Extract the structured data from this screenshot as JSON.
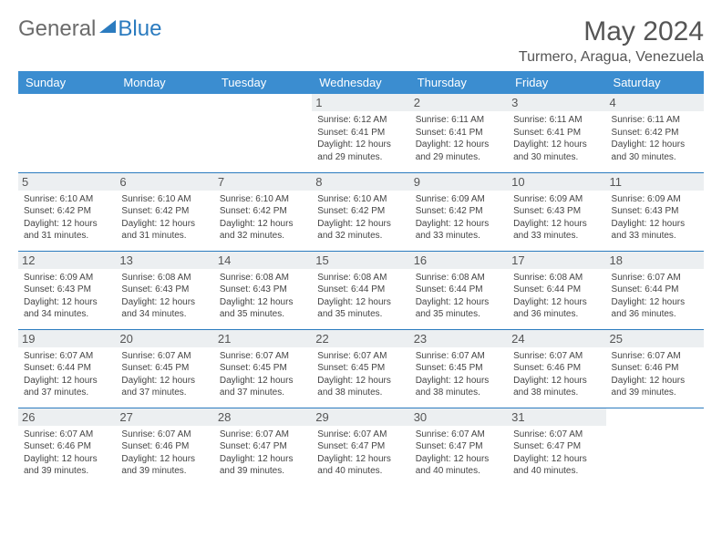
{
  "logo": {
    "general": "General",
    "blue": "Blue"
  },
  "title": "May 2024",
  "location": "Turmero, Aragua, Venezuela",
  "day_headers": [
    "Sunday",
    "Monday",
    "Tuesday",
    "Wednesday",
    "Thursday",
    "Friday",
    "Saturday"
  ],
  "colors": {
    "header_bg": "#3b8dd0",
    "accent": "#2b7bbf",
    "daynum_bg": "#eceff1",
    "text": "#444444"
  },
  "layout": {
    "first_weekday_index": 3,
    "days_in_month": 31,
    "cols": 7,
    "rows": 5
  },
  "days": [
    {
      "n": 1,
      "sunrise": "6:12 AM",
      "sunset": "6:41 PM",
      "daylight": "12 hours and 29 minutes."
    },
    {
      "n": 2,
      "sunrise": "6:11 AM",
      "sunset": "6:41 PM",
      "daylight": "12 hours and 29 minutes."
    },
    {
      "n": 3,
      "sunrise": "6:11 AM",
      "sunset": "6:41 PM",
      "daylight": "12 hours and 30 minutes."
    },
    {
      "n": 4,
      "sunrise": "6:11 AM",
      "sunset": "6:42 PM",
      "daylight": "12 hours and 30 minutes."
    },
    {
      "n": 5,
      "sunrise": "6:10 AM",
      "sunset": "6:42 PM",
      "daylight": "12 hours and 31 minutes."
    },
    {
      "n": 6,
      "sunrise": "6:10 AM",
      "sunset": "6:42 PM",
      "daylight": "12 hours and 31 minutes."
    },
    {
      "n": 7,
      "sunrise": "6:10 AM",
      "sunset": "6:42 PM",
      "daylight": "12 hours and 32 minutes."
    },
    {
      "n": 8,
      "sunrise": "6:10 AM",
      "sunset": "6:42 PM",
      "daylight": "12 hours and 32 minutes."
    },
    {
      "n": 9,
      "sunrise": "6:09 AM",
      "sunset": "6:42 PM",
      "daylight": "12 hours and 33 minutes."
    },
    {
      "n": 10,
      "sunrise": "6:09 AM",
      "sunset": "6:43 PM",
      "daylight": "12 hours and 33 minutes."
    },
    {
      "n": 11,
      "sunrise": "6:09 AM",
      "sunset": "6:43 PM",
      "daylight": "12 hours and 33 minutes."
    },
    {
      "n": 12,
      "sunrise": "6:09 AM",
      "sunset": "6:43 PM",
      "daylight": "12 hours and 34 minutes."
    },
    {
      "n": 13,
      "sunrise": "6:08 AM",
      "sunset": "6:43 PM",
      "daylight": "12 hours and 34 minutes."
    },
    {
      "n": 14,
      "sunrise": "6:08 AM",
      "sunset": "6:43 PM",
      "daylight": "12 hours and 35 minutes."
    },
    {
      "n": 15,
      "sunrise": "6:08 AM",
      "sunset": "6:44 PM",
      "daylight": "12 hours and 35 minutes."
    },
    {
      "n": 16,
      "sunrise": "6:08 AM",
      "sunset": "6:44 PM",
      "daylight": "12 hours and 35 minutes."
    },
    {
      "n": 17,
      "sunrise": "6:08 AM",
      "sunset": "6:44 PM",
      "daylight": "12 hours and 36 minutes."
    },
    {
      "n": 18,
      "sunrise": "6:07 AM",
      "sunset": "6:44 PM",
      "daylight": "12 hours and 36 minutes."
    },
    {
      "n": 19,
      "sunrise": "6:07 AM",
      "sunset": "6:44 PM",
      "daylight": "12 hours and 37 minutes."
    },
    {
      "n": 20,
      "sunrise": "6:07 AM",
      "sunset": "6:45 PM",
      "daylight": "12 hours and 37 minutes."
    },
    {
      "n": 21,
      "sunrise": "6:07 AM",
      "sunset": "6:45 PM",
      "daylight": "12 hours and 37 minutes."
    },
    {
      "n": 22,
      "sunrise": "6:07 AM",
      "sunset": "6:45 PM",
      "daylight": "12 hours and 38 minutes."
    },
    {
      "n": 23,
      "sunrise": "6:07 AM",
      "sunset": "6:45 PM",
      "daylight": "12 hours and 38 minutes."
    },
    {
      "n": 24,
      "sunrise": "6:07 AM",
      "sunset": "6:46 PM",
      "daylight": "12 hours and 38 minutes."
    },
    {
      "n": 25,
      "sunrise": "6:07 AM",
      "sunset": "6:46 PM",
      "daylight": "12 hours and 39 minutes."
    },
    {
      "n": 26,
      "sunrise": "6:07 AM",
      "sunset": "6:46 PM",
      "daylight": "12 hours and 39 minutes."
    },
    {
      "n": 27,
      "sunrise": "6:07 AM",
      "sunset": "6:46 PM",
      "daylight": "12 hours and 39 minutes."
    },
    {
      "n": 28,
      "sunrise": "6:07 AM",
      "sunset": "6:47 PM",
      "daylight": "12 hours and 39 minutes."
    },
    {
      "n": 29,
      "sunrise": "6:07 AM",
      "sunset": "6:47 PM",
      "daylight": "12 hours and 40 minutes."
    },
    {
      "n": 30,
      "sunrise": "6:07 AM",
      "sunset": "6:47 PM",
      "daylight": "12 hours and 40 minutes."
    },
    {
      "n": 31,
      "sunrise": "6:07 AM",
      "sunset": "6:47 PM",
      "daylight": "12 hours and 40 minutes."
    }
  ],
  "labels": {
    "sunrise_prefix": "Sunrise: ",
    "sunset_prefix": "Sunset: ",
    "daylight_prefix": "Daylight: "
  }
}
